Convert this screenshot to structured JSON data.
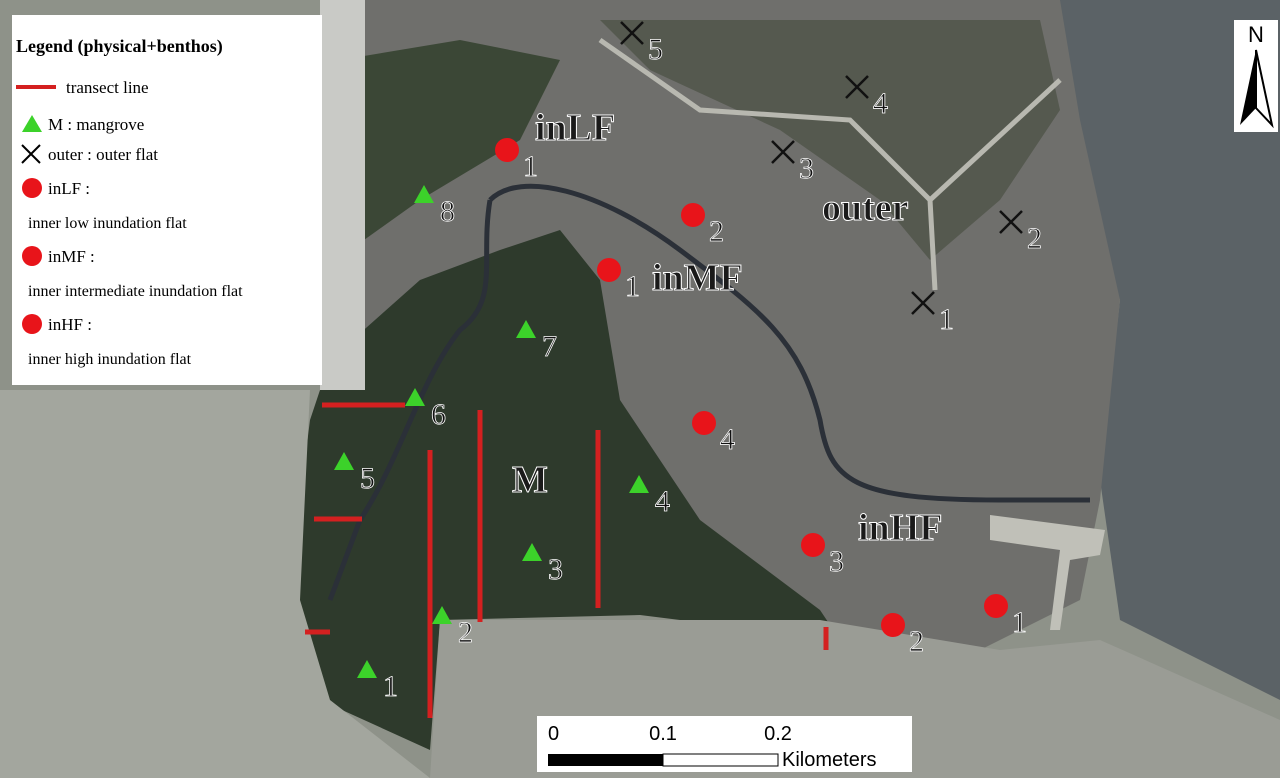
{
  "legend": {
    "title": "Legend (physical+benthos)",
    "items": [
      {
        "label": "transect line"
      },
      {
        "label": "M : mangrove"
      },
      {
        "label": "outer : outer flat"
      },
      {
        "label": "inLF :",
        "desc": "inner low inundation flat"
      },
      {
        "label": "inMF :",
        "desc": "inner intermediate inundation flat"
      },
      {
        "label": "inHF :",
        "desc": "inner high inundation flat"
      }
    ]
  },
  "areas": [
    "inLF",
    "inMF",
    "outer",
    "inHF",
    "M"
  ],
  "sites": {
    "mangrove": [
      "1",
      "2",
      "3",
      "4",
      "5",
      "6",
      "7",
      "8"
    ],
    "outer": [
      "1",
      "2",
      "3",
      "4",
      "5"
    ],
    "inner": [
      "1",
      "2",
      "1",
      "4",
      "3",
      "2",
      "1"
    ]
  },
  "north": "N",
  "scale": {
    "ticks": [
      0,
      0.1,
      0.2
    ],
    "unit": "Kilometers"
  }
}
